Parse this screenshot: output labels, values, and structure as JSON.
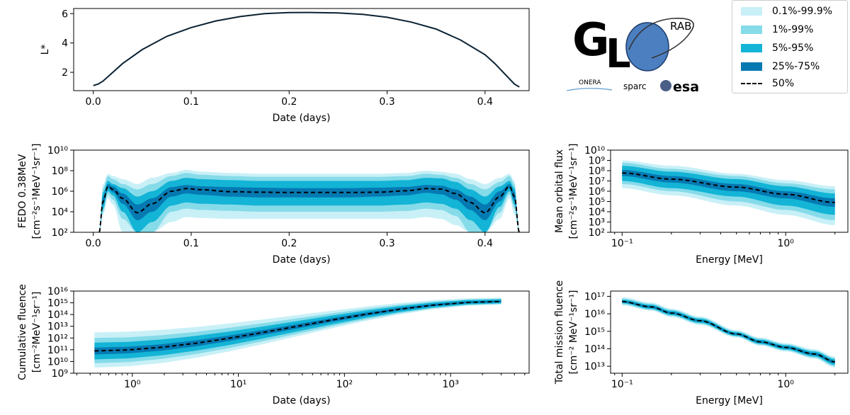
{
  "colors": {
    "band_01_999": "#c9f0f7",
    "band_1_99": "#86dbe9",
    "band_5_95": "#13b4d6",
    "band_25_75": "#0579b2",
    "median": "#000000",
    "lstar": "#0b2233"
  },
  "logo": {
    "text_g": "G",
    "text_l": "L",
    "text_rab": "RAB",
    "partners": [
      "ONERA",
      "sparc",
      "esa"
    ]
  },
  "legend": {
    "items": [
      {
        "label": "0.1%-99.9%",
        "color_key": "band_01_999"
      },
      {
        "label": "1%-99%",
        "color_key": "band_1_99"
      },
      {
        "label": "5%-95%",
        "color_key": "band_5_95"
      },
      {
        "label": "25%-75%",
        "color_key": "band_25_75"
      },
      {
        "label": "50%",
        "style": "dashed"
      }
    ]
  },
  "chart_data": [
    {
      "id": "lstar",
      "type": "line",
      "xlabel": "Date (days)",
      "ylabel": "L*",
      "xlim": [
        -0.02,
        0.445
      ],
      "ylim": [
        0.75,
        6.35
      ],
      "xticks": [
        0,
        0.1,
        0.2,
        0.3,
        0.4
      ],
      "xticklabels": [
        "0.0",
        "0.1",
        "0.2",
        "0.3",
        "0.4"
      ],
      "yticks": [
        2,
        4,
        6
      ],
      "yticklabels": [
        "2",
        "4",
        "6"
      ],
      "x": [
        0,
        0.005,
        0.01,
        0.02,
        0.03,
        0.05,
        0.075,
        0.1,
        0.125,
        0.15,
        0.175,
        0.2,
        0.22,
        0.25,
        0.275,
        0.3,
        0.325,
        0.35,
        0.375,
        0.4,
        0.41,
        0.42,
        0.43,
        0.435
      ],
      "y": [
        1.1,
        1.2,
        1.4,
        2.0,
        2.6,
        3.55,
        4.45,
        5.05,
        5.5,
        5.8,
        6.0,
        6.07,
        6.08,
        6.05,
        5.95,
        5.75,
        5.42,
        4.95,
        4.2,
        3.2,
        2.6,
        1.9,
        1.2,
        1.0
      ]
    },
    {
      "id": "fedo",
      "type": "area",
      "xlabel": "Date (days)",
      "ylabel": "FEDO 0.38MeV",
      "yunit": "[cm⁻²s⁻¹MeV⁻¹sr⁻¹]",
      "yscale": "log",
      "xlim": [
        -0.02,
        0.445
      ],
      "ylim": [
        100,
        10000000000.0
      ],
      "xticks": [
        0,
        0.1,
        0.2,
        0.3,
        0.4
      ],
      "xticklabels": [
        "0.0",
        "0.1",
        "0.2",
        "0.3",
        "0.4"
      ],
      "yticks": [
        100,
        10000,
        1000000,
        100000000,
        10000000000
      ],
      "yticklabels": [
        "10²",
        "10⁴",
        "10⁶",
        "10⁸",
        "10¹⁰"
      ],
      "x": [
        0.006,
        0.01,
        0.015,
        0.02,
        0.03,
        0.045,
        0.06,
        0.08,
        0.095,
        0.11,
        0.14,
        0.17,
        0.2,
        0.23,
        0.26,
        0.29,
        0.32,
        0.34,
        0.355,
        0.37,
        0.385,
        0.4,
        0.415,
        0.425,
        0.43,
        0.435
      ],
      "median": [
        100.0,
        100000.0,
        3000000.0,
        1500000.0,
        200000.0,
        8000.0,
        60000.0,
        1000000.0,
        1800000.0,
        1400000.0,
        900000.0,
        800000.0,
        750000.0,
        750000.0,
        750000.0,
        800000.0,
        1100000.0,
        1800000.0,
        1600000.0,
        600000.0,
        80000.0,
        8000.0,
        300000.0,
        3000000.0,
        300000.0,
        100.0
      ],
      "p25": [
        100.0,
        50000.0,
        2000000.0,
        800000.0,
        60000.0,
        1500.0,
        10000.0,
        300000.0,
        600000.0,
        450000.0,
        300000.0,
        250000.0,
        250000.0,
        250000.0,
        250000.0,
        300000.0,
        400000.0,
        700000.0,
        500000.0,
        150000.0,
        15000.0,
        1500.0,
        100000.0,
        2000000.0,
        120000.0,
        100.0
      ],
      "p75": [
        100.0,
        300000.0,
        5000000.0,
        3000000.0,
        600000.0,
        50000.0,
        200000.0,
        2500000.0,
        4000000.0,
        3000000.0,
        2500000.0,
        2200000.0,
        2000000.0,
        2000000.0,
        2000000.0,
        2200000.0,
        2600000.0,
        4000000.0,
        3500000.0,
        1500000.0,
        300000.0,
        50000.0,
        1000000.0,
        5000000.0,
        800000.0,
        100.0
      ],
      "p5": [
        100.0,
        20000.0,
        1000000.0,
        400000.0,
        10000.0,
        100.0,
        1000.0,
        40000.0,
        80000.0,
        60000.0,
        50000.0,
        40000.0,
        40000.0,
        40000.0,
        40000.0,
        40000.0,
        50000.0,
        80000.0,
        60000.0,
        20000.0,
        1500.0,
        100.0,
        30000.0,
        1000000.0,
        50000.0,
        100.0
      ],
      "p95": [
        100.0,
        800000.0,
        10000000.0,
        5000000.0,
        2000000.0,
        300000.0,
        1000000.0,
        10000000.0,
        20000000.0,
        15000000.0,
        12000000.0,
        10000000.0,
        10000000.0,
        10000000.0,
        10000000.0,
        10000000.0,
        12000000.0,
        20000000.0,
        18000000.0,
        8000000.0,
        1500000.0,
        300000.0,
        3000000.0,
        10000000.0,
        2000000.0,
        100.0
      ],
      "p1": [
        100.0,
        10000.0,
        500000.0,
        150000.0,
        2000.0,
        100.0,
        100.0,
        10000.0,
        20000.0,
        15000.0,
        12000.0,
        10000.0,
        10000.0,
        10000.0,
        10000.0,
        10000.0,
        12000.0,
        20000.0,
        15000.0,
        4000.0,
        100.0,
        100.0,
        8000.0,
        500000.0,
        20000.0,
        100.0
      ],
      "p99": [
        100.0,
        2000000.0,
        30000000.0,
        15000000.0,
        5000000.0,
        1500000.0,
        5000000.0,
        30000000.0,
        60000000.0,
        40000000.0,
        30000000.0,
        25000000.0,
        25000000.0,
        25000000.0,
        25000000.0,
        25000000.0,
        30000000.0,
        50000000.0,
        40000000.0,
        20000000.0,
        5000000.0,
        1500000.0,
        8000000.0,
        30000000.0,
        5000000.0,
        100.0
      ],
      "p01": [
        100.0,
        5000.0,
        200000.0,
        50000.0,
        100.0,
        100.0,
        100.0,
        1000.0,
        3000.0,
        2500.0,
        2000.0,
        2000.0,
        2000.0,
        2000.0,
        2000.0,
        2000.0,
        2000.0,
        3000.0,
        2000.0,
        500.0,
        100.0,
        100.0,
        2000.0,
        200000.0,
        5000.0,
        100.0
      ],
      "p999": [
        100.0,
        5000000.0,
        50000000.0,
        30000000.0,
        15000000.0,
        5000000.0,
        20000000.0,
        60000000.0,
        120000000.0,
        80000000.0,
        60000000.0,
        50000000.0,
        50000000.0,
        50000000.0,
        50000000.0,
        50000000.0,
        60000000.0,
        100000000.0,
        80000000.0,
        50000000.0,
        15000000.0,
        5000000.0,
        20000000.0,
        50000000.0,
        10000000.0,
        100.0
      ]
    },
    {
      "id": "meanflux",
      "type": "area",
      "xlabel": "Energy [MeV]",
      "ylabel": "Mean orbital flux",
      "yunit": "[cm⁻²s⁻¹MeV⁻¹sr⁻¹]",
      "xscale": "log",
      "yscale": "log",
      "xlim": [
        0.085,
        2.4
      ],
      "ylim": [
        100,
        10000000000.0
      ],
      "xticks": [
        0.1,
        1
      ],
      "xticklabels": [
        "10⁻¹",
        "10⁰"
      ],
      "yticks": [
        100,
        1000,
        10000,
        100000,
        1000000,
        10000000,
        100000000,
        1000000000,
        10000000000
      ],
      "yticklabels": [
        "10²",
        "10³",
        "10⁴",
        "10⁵",
        "10⁶",
        "10⁷",
        "10⁸",
        "10⁹",
        "10¹⁰"
      ],
      "x": [
        0.1,
        0.2,
        0.5,
        1,
        2
      ],
      "median": [
        60000000.0,
        15000000.0,
        2500000.0,
        500000.0,
        80000.0
      ],
      "p25": [
        30000000.0,
        7000000.0,
        1000000.0,
        200000.0,
        30000.0
      ],
      "p75": [
        120000000.0,
        30000000.0,
        5000000.0,
        1000000.0,
        200000.0
      ],
      "p5": [
        10000000.0,
        2000000.0,
        300000.0,
        40000.0,
        5000.0
      ],
      "p95": [
        300000000.0,
        80000000.0,
        15000000.0,
        3000000.0,
        600000.0
      ],
      "p1": [
        5000000.0,
        1000000.0,
        100000.0,
        15000.0,
        1500.0
      ],
      "p99": [
        600000000.0,
        150000000.0,
        30000000.0,
        6000000.0,
        1500000.0
      ],
      "p01": [
        2000000.0,
        400000.0,
        40000.0,
        5000.0,
        500.0
      ],
      "p999": [
        1000000000.0,
        300000000.0,
        50000000.0,
        12000000.0,
        3000000.0
      ]
    },
    {
      "id": "cumfluence",
      "type": "area",
      "xlabel": "Date (days)",
      "ylabel": "Cumulative fluence",
      "yunit": "[cm⁻²MeV⁻¹sr⁻¹]",
      "xscale": "log",
      "yscale": "log",
      "xlim": [
        0.28,
        5500
      ],
      "ylim": [
        1000000000.0,
        1e+16
      ],
      "xticks": [
        1,
        10,
        100,
        1000
      ],
      "xticklabels": [
        "10⁰",
        "10¹",
        "10²",
        "10³"
      ],
      "yticks": [
        1000000000.0,
        10000000000.0,
        100000000000.0,
        1000000000000.0,
        10000000000000.0,
        100000000000000.0,
        1000000000000000.0,
        1e+16
      ],
      "yticklabels": [
        "10⁹",
        "10¹⁰",
        "10¹¹",
        "10¹²",
        "10¹³",
        "10¹⁴",
        "10¹⁵",
        "10¹⁶"
      ],
      "x": [
        0.44,
        3000
      ],
      "median": [
        80000000000.0,
        1300000000000000.0
      ],
      "p25": [
        40000000000.0,
        1100000000000000.0
      ],
      "p75": [
        150000000000.0,
        1600000000000000.0
      ],
      "p5": [
        15000000000.0,
        900000000000000.0
      ],
      "p95": [
        400000000000.0,
        2000000000000000.0
      ],
      "p1": [
        7000000000.0,
        800000000000000.0
      ],
      "p99": [
        1000000000000.0,
        2300000000000000.0
      ],
      "p01": [
        3000000000.0,
        700000000000000.0
      ],
      "p999": [
        3000000000000.0,
        2800000000000000.0
      ]
    },
    {
      "id": "missionfluence",
      "type": "area",
      "xlabel": "Energy [MeV]",
      "ylabel": "Total mission fluence",
      "yunit": "[cm⁻² MeV⁻¹sr⁻¹]",
      "xscale": "log",
      "yscale": "log",
      "xlim": [
        0.085,
        2.4
      ],
      "ylim": [
        4000000000000.0,
        2e+17
      ],
      "xticks": [
        0.1,
        1
      ],
      "xticklabels": [
        "10⁻¹",
        "10⁰"
      ],
      "yticks": [
        10000000000000.0,
        100000000000000.0,
        1000000000000000.0,
        1e+16,
        1e+17
      ],
      "yticklabels": [
        "10¹³",
        "10¹⁴",
        "10¹⁵",
        "10¹⁶",
        "10¹⁷"
      ],
      "x": [
        0.1,
        0.15,
        0.2,
        0.3,
        0.5,
        0.7,
        1,
        1.5,
        2
      ],
      "median": [
        5e+16,
        2.5e+16,
        1.1e+16,
        4000000000000000.0,
        700000000000000.0,
        250000000000000.0,
        120000000000000.0,
        50000000000000.0,
        18000000000000.0
      ],
      "p25": [
        4.5e+16,
        2.2e+16,
        1e+16,
        3600000000000000.0,
        630000000000000.0,
        220000000000000.0,
        105000000000000.0,
        43000000000000.0,
        15000000000000.0
      ],
      "p75": [
        5.6e+16,
        2.8e+16,
        1.25e+16,
        4500000000000000.0,
        780000000000000.0,
        280000000000000.0,
        135000000000000.0,
        58000000000000.0,
        21000000000000.0
      ],
      "p5": [
        4e+16,
        1.9e+16,
        8500000000000000.0,
        3000000000000000.0,
        550000000000000.0,
        190000000000000.0,
        90000000000000.0,
        36000000000000.0,
        12000000000000.0
      ],
      "p95": [
        6.5e+16,
        3.3e+16,
        1.5e+16,
        5300000000000000.0,
        900000000000000.0,
        330000000000000.0,
        160000000000000.0,
        70000000000000.0,
        26000000000000.0
      ],
      "p1": [
        3.5e+16,
        1.7e+16,
        7500000000000000.0,
        2700000000000000.0,
        500000000000000.0,
        170000000000000.0,
        80000000000000.0,
        31000000000000.0,
        10000000000000.0
      ],
      "p99": [
        7.5e+16,
        3.8e+16,
        1.7e+16,
        6000000000000000.0,
        1000000000000000.0,
        380000000000000.0,
        180000000000000.0,
        80000000000000.0,
        30000000000000.0
      ],
      "p01": [
        3e+16,
        1.5e+16,
        6500000000000000.0,
        2300000000000000.0,
        440000000000000.0,
        150000000000000.0,
        70000000000000.0,
        27000000000000.0,
        8500000000000.0
      ],
      "p999": [
        9e+16,
        4.5e+16,
        2e+16,
        7000000000000000.0,
        1200000000000000.0,
        440000000000000.0,
        210000000000000.0,
        95000000000000.0,
        36000000000000.0
      ]
    }
  ]
}
